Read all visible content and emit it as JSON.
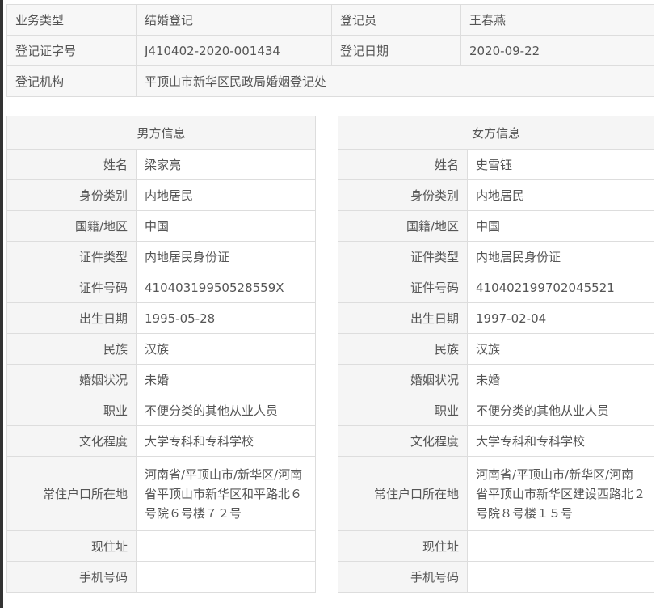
{
  "registration": {
    "business_type_label": "业务类型",
    "business_type": "结婚登记",
    "registrar_label": "登记员",
    "registrar": "王春燕",
    "cert_no_label": "登记证字号",
    "cert_no": "J410402-2020-001434",
    "date_label": "登记日期",
    "date": "2020-09-22",
    "office_label": "登记机构",
    "office": "平顶山市新华区民政局婚姻登记处"
  },
  "male": {
    "title": "男方信息",
    "rows": [
      {
        "label": "姓名",
        "value": "梁家亮"
      },
      {
        "label": "身份类别",
        "value": "内地居民"
      },
      {
        "label": "国籍/地区",
        "value": "中国"
      },
      {
        "label": "证件类型",
        "value": "内地居民身份证"
      },
      {
        "label": "证件号码",
        "value": "41040319950528559X"
      },
      {
        "label": "出生日期",
        "value": "1995-05-28"
      },
      {
        "label": "民族",
        "value": "汉族"
      },
      {
        "label": "婚姻状况",
        "value": "未婚"
      },
      {
        "label": "职业",
        "value": "不便分类的其他从业人员"
      },
      {
        "label": "文化程度",
        "value": "大学专科和专科学校"
      },
      {
        "label": "常住户口所在地",
        "value": "河南省/平顶山市/新华区/河南省平顶山市新华区和平路北６号院６号楼７２号"
      },
      {
        "label": "现住址",
        "value": ""
      },
      {
        "label": "手机号码",
        "value": ""
      }
    ]
  },
  "female": {
    "title": "女方信息",
    "rows": [
      {
        "label": "姓名",
        "value": "史雪钰"
      },
      {
        "label": "身份类别",
        "value": "内地居民"
      },
      {
        "label": "国籍/地区",
        "value": "中国"
      },
      {
        "label": "证件类型",
        "value": "内地居民身份证"
      },
      {
        "label": "证件号码",
        "value": "410402199702045521"
      },
      {
        "label": "出生日期",
        "value": "1997-02-04"
      },
      {
        "label": "民族",
        "value": "汉族"
      },
      {
        "label": "婚姻状况",
        "value": "未婚"
      },
      {
        "label": "职业",
        "value": "不便分类的其他从业人员"
      },
      {
        "label": "文化程度",
        "value": "大学专科和专科学校"
      },
      {
        "label": "常住户口所在地",
        "value": "河南省/平顶山市/新华区/河南省平顶山市新华区建设西路北２号院８号楼１５号"
      },
      {
        "label": "现住址",
        "value": ""
      },
      {
        "label": "手机号码",
        "value": ""
      }
    ]
  }
}
